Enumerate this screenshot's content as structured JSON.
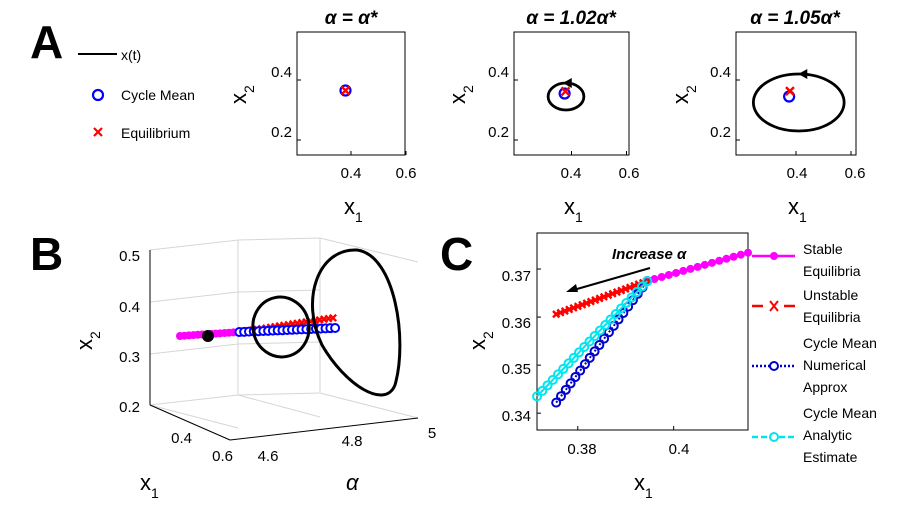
{
  "panel_labels": {
    "A": "A",
    "B": "B",
    "C": "C"
  },
  "colors": {
    "trajectory": "#000000",
    "cycle_mean": "#0000ff",
    "equilibrium": "#ff0000",
    "stable": "#ff00ff",
    "unstable": "#ff0000",
    "numerical": "#0000cc",
    "analytic": "#00e5ee"
  },
  "legend_A": {
    "trajectory": "x(t)",
    "cycle_mean": "Cycle Mean",
    "equilibrium": "Equilibrium"
  },
  "legend_C": {
    "stable": [
      "Stable",
      "Equilibria"
    ],
    "unstable": [
      "Unstable",
      "Equilibria"
    ],
    "numerical": [
      "Cycle Mean",
      "Numerical",
      "Approx"
    ],
    "analytic": [
      "Cycle Mean",
      "Analytic",
      "Estimate"
    ]
  },
  "chart_data": [
    {
      "panel": "A1",
      "type": "line",
      "title": "α = α*",
      "xlabel": "x",
      "xlabel_sub": "1",
      "ylabel": "x",
      "ylabel_sub": "2",
      "xlim": [
        0.25,
        0.6
      ],
      "ylim": [
        0.15,
        0.5
      ],
      "xticks": [
        0.4,
        0.6
      ],
      "yticks": [
        0.2,
        0.4
      ],
      "cycle": {
        "cx": 0.38,
        "cy": 0.365,
        "rx": 0.0,
        "ry": 0.0
      },
      "cycle_mean": [
        0.38,
        0.365
      ],
      "equilibrium": [
        0.38,
        0.365
      ]
    },
    {
      "panel": "A2",
      "type": "line",
      "title": "α = 1.02α*",
      "xlabel": "x",
      "xlabel_sub": "1",
      "ylabel": "x",
      "ylabel_sub": "2",
      "xlim": [
        0.25,
        0.6
      ],
      "ylim": [
        0.15,
        0.5
      ],
      "xticks": [
        0.4,
        0.6
      ],
      "yticks": [
        0.2,
        0.4
      ],
      "cycle": {
        "cx": 0.38,
        "cy": 0.345,
        "rx": 0.065,
        "ry": 0.045
      },
      "cycle_mean": [
        0.375,
        0.355
      ],
      "equilibrium": [
        0.378,
        0.362
      ]
    },
    {
      "panel": "A3",
      "type": "line",
      "title": "α = 1.05α*",
      "xlabel": "x",
      "xlabel_sub": "1",
      "ylabel": "x",
      "ylabel_sub": "2",
      "xlim": [
        0.25,
        0.6
      ],
      "ylim": [
        0.15,
        0.5
      ],
      "xticks": [
        0.4,
        0.6
      ],
      "yticks": [
        0.2,
        0.4
      ],
      "cycle": {
        "cx": 0.41,
        "cy": 0.325,
        "rx": 0.165,
        "ry": 0.095
      },
      "cycle_mean": [
        0.375,
        0.345
      ],
      "equilibrium": [
        0.378,
        0.363
      ]
    },
    {
      "panel": "B",
      "type": "line",
      "xlabel": "α",
      "ylabel": "x",
      "ylabel_sub": "2",
      "zlabel": "x",
      "zlabel_sub": "1",
      "alpha_lim": [
        4.5,
        5.0
      ],
      "x2_lim": [
        0.2,
        0.5
      ],
      "x1_lim": [
        0.3,
        0.7
      ],
      "alpha_ticks": [
        "4.6",
        "4.8",
        "5"
      ],
      "x2_ticks": [
        "0.2",
        "0.3",
        "0.4",
        "0.5"
      ],
      "x1_ticks": [
        "0.4",
        "0.6"
      ],
      "alpha_onset": 4.68,
      "alpha_end": 4.97
    },
    {
      "panel": "C",
      "type": "line",
      "xlabel": "x",
      "xlabel_sub": "1",
      "ylabel": "x",
      "ylabel_sub": "2",
      "xlim": [
        0.3715,
        0.4155
      ],
      "ylim": [
        0.3365,
        0.3775
      ],
      "xticks": [
        "0.38",
        "0.4"
      ],
      "yticks": [
        "0.34",
        "0.35",
        "0.36",
        "0.37"
      ],
      "annotation": "Increase α",
      "series": [
        {
          "name": "Stable Equilibria",
          "x": [
            0.3945,
            0.4155
          ],
          "y": [
            0.3675,
            0.3734
          ]
        },
        {
          "name": "Unstable Equilibria",
          "x": [
            0.3755,
            0.3945
          ],
          "y": [
            0.3606,
            0.3675
          ]
        },
        {
          "name": "Cycle Mean Numerical Approx",
          "x": [
            0.3755,
            0.3945
          ],
          "y": [
            0.3422,
            0.3675
          ]
        },
        {
          "name": "Cycle Mean Analytic Estimate",
          "x": [
            0.3715,
            0.3945
          ],
          "y": [
            0.3435,
            0.3675
          ]
        }
      ]
    }
  ]
}
